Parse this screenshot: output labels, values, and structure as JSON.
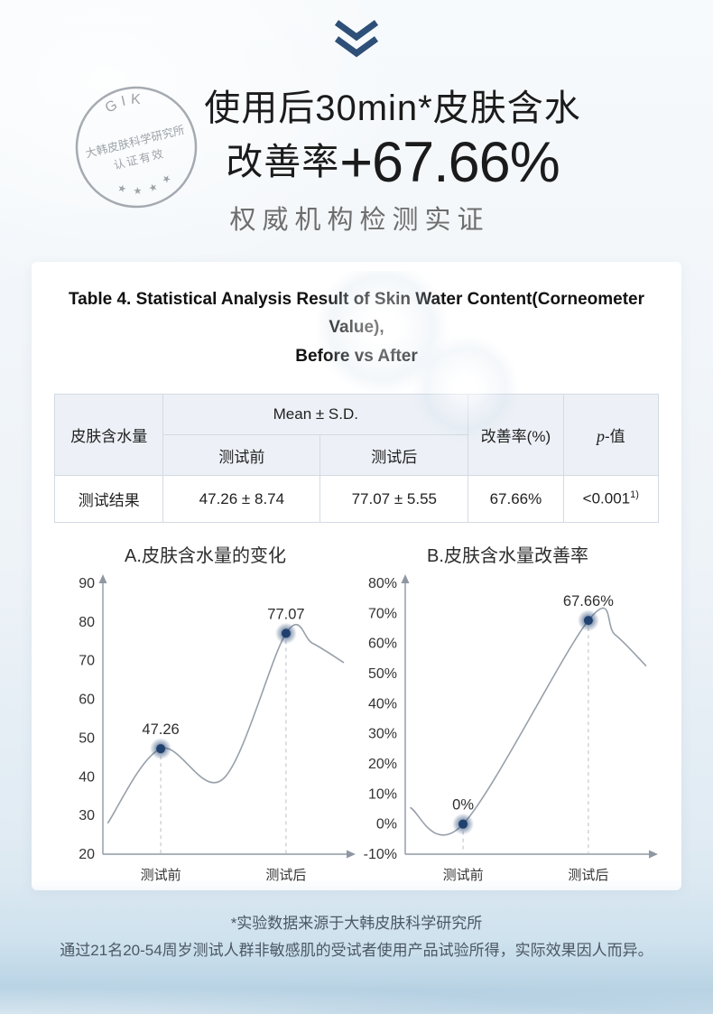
{
  "header": {
    "stamp": {
      "top": "GIK",
      "line1": "大韩皮肤科学研究所",
      "line2": "认证有效",
      "stars": "★ ★ ★ ★"
    },
    "title_line1": "使用后30min*皮肤含水",
    "title_line2_prefix": "改善率",
    "title_line2_value": "+67.66%",
    "subtitle": "权威机构检测实证"
  },
  "table": {
    "title_line1": "Table 4. Statistical Analysis Result of Skin Water Content(Corneometer Value),",
    "title_line2": "Before vs After",
    "headers": {
      "metric": "皮肤含水量",
      "mean_sd": "Mean ± S.D.",
      "before": "测试前",
      "after": "测试后",
      "improvement": "改善率(%)",
      "p_italic": "p",
      "p_suffix": "-值"
    },
    "row": {
      "label": "测试结果",
      "before": "47.26 ± 8.74",
      "after": "77.07 ± 5.55",
      "improvement": "67.66%",
      "p": "<0.001",
      "p_sup": "1)"
    }
  },
  "chart_data": [
    {
      "type": "line",
      "title": "A.皮肤含水量的变化",
      "categories": [
        "测试前",
        "测试后"
      ],
      "values": [
        47.26,
        77.07
      ],
      "data_labels": [
        "47.26",
        "77.07"
      ],
      "ylim": [
        20,
        90
      ],
      "ytick_values": [
        20,
        30,
        40,
        50,
        60,
        70,
        80,
        90
      ],
      "ytick_labels": [
        "20",
        "30",
        "40",
        "50",
        "60",
        "70",
        "80",
        "90"
      ],
      "category_t": [
        0.24,
        0.76
      ],
      "curve_shape": [
        [
          0.02,
          28
        ],
        [
          0.24,
          47.26
        ],
        [
          0.5,
          39.5
        ],
        [
          0.76,
          77.07
        ],
        [
          0.87,
          74.5
        ],
        [
          1.0,
          69.5
        ]
      ],
      "grid": false,
      "legend": "none"
    },
    {
      "type": "line",
      "title": "B.皮肤含水量改善率",
      "categories": [
        "测试前",
        "测试后"
      ],
      "values": [
        0,
        67.66
      ],
      "data_labels": [
        "0%",
        "67.66%"
      ],
      "ylim": [
        -10,
        80
      ],
      "ytick_values": [
        -10,
        0,
        10,
        20,
        30,
        40,
        50,
        60,
        70,
        80
      ],
      "ytick_labels": [
        "-10%",
        "0%",
        "10%",
        "20%",
        "30%",
        "40%",
        "50%",
        "60%",
        "70%",
        "80%"
      ],
      "category_t": [
        0.24,
        0.76
      ],
      "curve_shape": [
        [
          0.02,
          5.5
        ],
        [
          0.24,
          0
        ],
        [
          0.76,
          67.66
        ],
        [
          0.87,
          63
        ],
        [
          1.0,
          52.5
        ]
      ],
      "grid": false,
      "legend": "none"
    }
  ],
  "footnote": {
    "line1": "*实验数据来源于大韩皮肤科学研究所",
    "line2": "通过21名20-54周岁测试人群非敏感肌的受试者使用产品试验所得，实际效果因人而异。"
  },
  "colors": {
    "marker": "#20416f",
    "line": "#97a0aa",
    "axis": "#8f98a2",
    "dashed": "#b9bfc7",
    "header_bg": "#edf1f7",
    "chevron": "#2e4f78"
  }
}
